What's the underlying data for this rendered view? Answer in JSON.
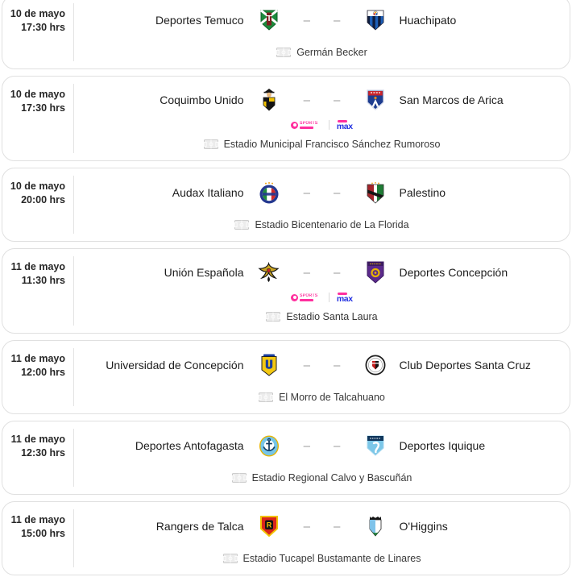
{
  "tv": {
    "tnt_label": "SPORTS",
    "max_label": "max"
  },
  "score_placeholder": "–",
  "colors": {
    "tnt_pink": "#ff2f9e",
    "max_blue": "#2230e0",
    "card_border": "#e0e0e0",
    "dash_gray": "#9a9a9a"
  },
  "matches": [
    {
      "date": "10 de mayo",
      "time": "17:30 hrs",
      "home": "Deportes Temuco",
      "away": "Huachipato",
      "home_logo": "deportes-temuco-crest",
      "away_logo": "huachipato-crest",
      "score_home": "–",
      "score_away": "–",
      "tv": false,
      "venue": "Germán Becker"
    },
    {
      "date": "10 de mayo",
      "time": "17:30 hrs",
      "home": "Coquimbo Unido",
      "away": "San Marcos de Arica",
      "home_logo": "coquimbo-unido-crest",
      "away_logo": "san-marcos-de-arica-crest",
      "score_home": "–",
      "score_away": "–",
      "tv": true,
      "venue": "Estadio Municipal Francisco Sánchez Rumoroso"
    },
    {
      "date": "10 de mayo",
      "time": "20:00 hrs",
      "home": "Audax Italiano",
      "away": "Palestino",
      "home_logo": "audax-italiano-crest",
      "away_logo": "palestino-crest",
      "score_home": "–",
      "score_away": "–",
      "tv": false,
      "venue": "Estadio Bicentenario de La Florida"
    },
    {
      "date": "11 de mayo",
      "time": "11:30 hrs",
      "home": "Unión Española",
      "away": "Deportes Concepción",
      "home_logo": "union-espanola-crest",
      "away_logo": "deportes-concepcion-crest",
      "score_home": "–",
      "score_away": "–",
      "tv": true,
      "venue": "Estadio Santa Laura"
    },
    {
      "date": "11 de mayo",
      "time": "12:00 hrs",
      "home": "Universidad de Concepción",
      "away": "Club Deportes Santa Cruz",
      "home_logo": "universidad-de-concepcion-crest",
      "away_logo": "santa-cruz-crest",
      "score_home": "–",
      "score_away": "–",
      "tv": false,
      "venue": "El Morro de Talcahuano"
    },
    {
      "date": "11 de mayo",
      "time": "12:30 hrs",
      "home": "Deportes Antofagasta",
      "away": "Deportes Iquique",
      "home_logo": "deportes-antofagasta-crest",
      "away_logo": "deportes-iquique-crest",
      "score_home": "–",
      "score_away": "–",
      "tv": false,
      "venue": "Estadio Regional Calvo y Bascuñán"
    },
    {
      "date": "11 de mayo",
      "time": "15:00 hrs",
      "home": "Rangers de Talca",
      "away": "O'Higgins",
      "home_logo": "rangers-de-talca-crest",
      "away_logo": "ohiggins-crest",
      "score_home": "–",
      "score_away": "–",
      "tv": false,
      "venue": "Estadio Tucapel Bustamante de Linares"
    }
  ]
}
